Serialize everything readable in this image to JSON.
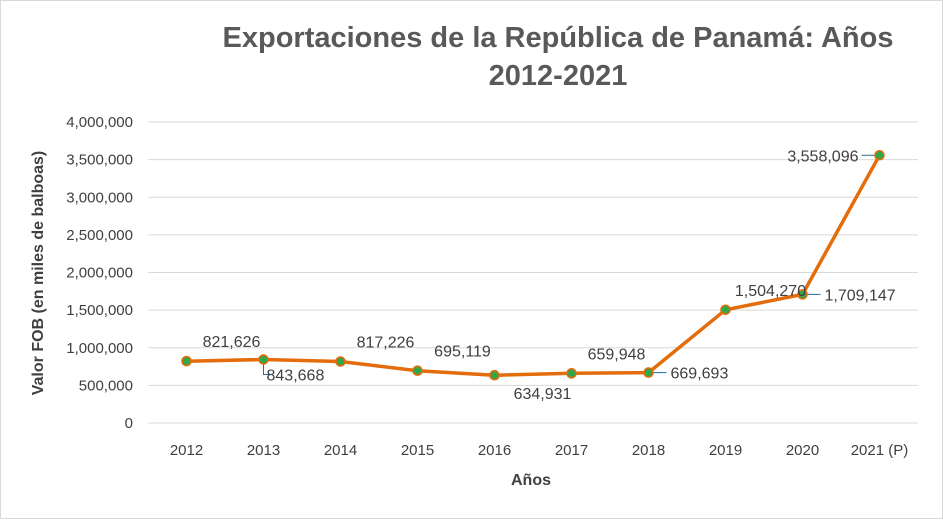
{
  "chart_data": {
    "type": "line",
    "title_lines": [
      "Exportaciones de la República de Panamá:  Años",
      "2012-2021"
    ],
    "xlabel": "Años",
    "ylabel": "Valor FOB (en miles de balboas)",
    "categories": [
      "2012",
      "2013",
      "2014",
      "2015",
      "2016",
      "2017",
      "2018",
      "2019",
      "2020",
      "2021 (P)"
    ],
    "values": [
      821626,
      843668,
      817226,
      695119,
      634931,
      659948,
      669693,
      1504270,
      1709147,
      3558096
    ],
    "data_labels": [
      "821,626",
      "843,668",
      "817,226",
      "695,119",
      "634,931",
      "659,948",
      "669,693",
      "1,504,270",
      "1,709,147",
      "3,558,096"
    ],
    "label_positions": [
      "above",
      "below-right",
      "above",
      "above",
      "below",
      "above",
      "right",
      "above",
      "right",
      "left"
    ],
    "ylim": [
      0,
      4000000
    ],
    "yticks": [
      0,
      500000,
      1000000,
      1500000,
      2000000,
      2500000,
      3000000,
      3500000,
      4000000
    ],
    "ytick_labels": [
      "0",
      "500,000",
      "1,000,000",
      "1,500,000",
      "2,000,000",
      "2,500,000",
      "3,000,000",
      "3,500,000",
      "4,000,000"
    ],
    "grid": true,
    "line_color": "#e46c0a",
    "marker_fill": "#2ea84a",
    "leader_color": "#1f6e9e"
  }
}
